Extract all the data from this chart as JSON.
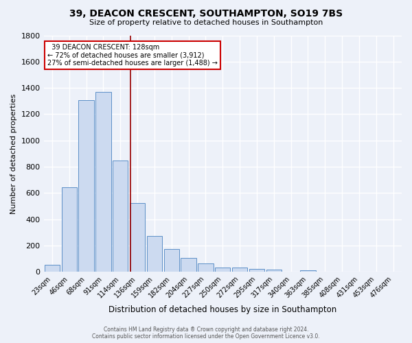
{
  "title": "39, DEACON CRESCENT, SOUTHAMPTON, SO19 7BS",
  "subtitle": "Size of property relative to detached houses in Southampton",
  "xlabel": "Distribution of detached houses by size in Southampton",
  "ylabel": "Number of detached properties",
  "footer_line1": "Contains HM Land Registry data ® Crown copyright and database right 2024.",
  "footer_line2": "Contains public sector information licensed under the Open Government Licence v3.0.",
  "categories": [
    "23sqm",
    "46sqm",
    "68sqm",
    "91sqm",
    "114sqm",
    "136sqm",
    "159sqm",
    "182sqm",
    "204sqm",
    "227sqm",
    "250sqm",
    "272sqm",
    "295sqm",
    "317sqm",
    "340sqm",
    "363sqm",
    "385sqm",
    "408sqm",
    "431sqm",
    "453sqm",
    "476sqm"
  ],
  "values": [
    55,
    645,
    1305,
    1370,
    845,
    525,
    275,
    175,
    105,
    65,
    35,
    35,
    25,
    15,
    0,
    10,
    0,
    0,
    0,
    0,
    0
  ],
  "bar_color_fill": "#ccdaf0",
  "bar_color_edge": "#5b8fc7",
  "background_color": "#edf1f9",
  "grid_color": "#ffffff",
  "vline_x": 4.6,
  "vline_color": "#990000",
  "annotation_text": "  39 DEACON CRESCENT: 128sqm  \n← 72% of detached houses are smaller (3,912)\n27% of semi-detached houses are larger (1,488) →",
  "annotation_box_color": "#ffffff",
  "annotation_box_edge": "#cc0000",
  "ylim": [
    0,
    1800
  ],
  "yticks": [
    0,
    200,
    400,
    600,
    800,
    1000,
    1200,
    1400,
    1600,
    1800
  ],
  "title_fontsize": 10,
  "subtitle_fontsize": 8,
  "ylabel_fontsize": 8,
  "xlabel_fontsize": 8.5
}
